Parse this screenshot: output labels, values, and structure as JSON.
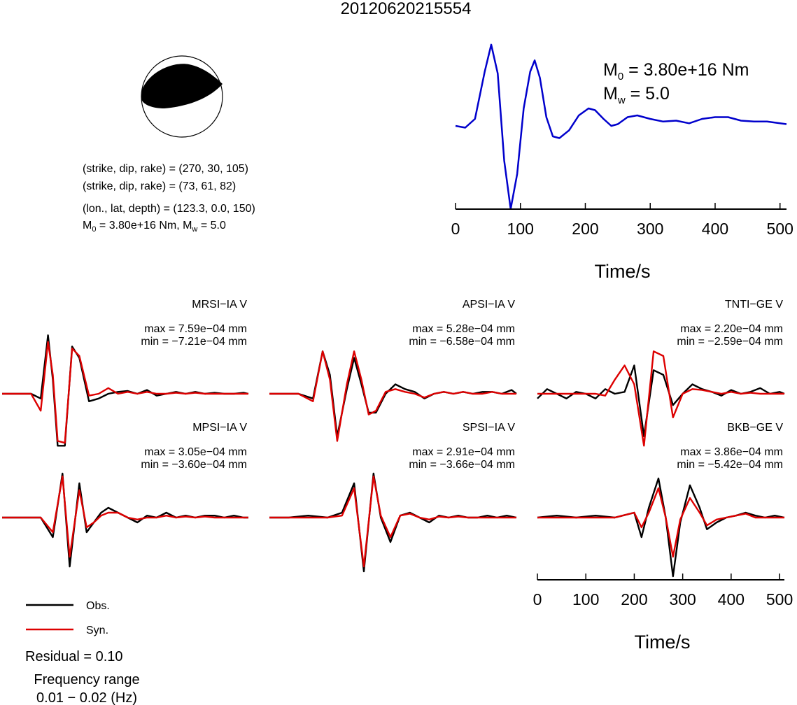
{
  "title": "20120620215554",
  "beachball": {
    "line1": "(strike, dip, rake) = (270, 30, 105)",
    "line2": "(strike, dip, rake) = (73, 61, 82)",
    "line3": "(lon., lat, depth) = (123.3, 0.0, 150)",
    "line4_a": "M",
    "line4_sub0": "0",
    "line4_b": " = 3.80e+16 Nm, M",
    "line4_subw": "w",
    "line4_c": " = 5.0"
  },
  "stf": {
    "m0_sym": "M",
    "m0_sub": "0",
    "m0_text": " = 3.80e+16 Nm",
    "mw_sym": "M",
    "mw_sub": "w",
    "mw_text": " = 5.0"
  },
  "legend": {
    "obs": "Obs.",
    "syn": "Syn."
  },
  "residual": "Residual = 0.10",
  "freq_line1": "Frequency range",
  "freq_line2": "0.01 − 0.02 (Hz)",
  "colors": {
    "obs": "#000000",
    "syn": "#dd0000",
    "stf": "#0000cc"
  },
  "chart_data": [
    {
      "type": "line",
      "xlabel": "Time/s",
      "xlim": [
        0,
        510
      ],
      "xticks": [
        "0",
        "100",
        "200",
        "300",
        "400",
        "500"
      ],
      "series": [
        {
          "x": [
            0,
            15,
            30,
            45,
            55,
            65,
            75,
            85,
            95,
            105,
            115,
            122,
            130,
            140,
            150,
            160,
            175,
            190,
            205,
            215,
            228,
            240,
            250,
            265,
            280,
            300,
            320,
            340,
            360,
            380,
            400,
            420,
            440,
            460,
            480,
            500,
            510
          ],
          "values": [
            0.0,
            -0.02,
            0.08,
            0.62,
            0.93,
            0.6,
            -0.4,
            -0.95,
            -0.55,
            0.2,
            0.62,
            0.75,
            0.55,
            0.1,
            -0.12,
            -0.14,
            -0.05,
            0.12,
            0.2,
            0.18,
            0.08,
            0.0,
            0.02,
            0.1,
            0.12,
            0.08,
            0.05,
            0.06,
            0.03,
            0.08,
            0.1,
            0.1,
            0.06,
            0.05,
            0.05,
            0.03,
            0.02
          ]
        }
      ]
    },
    {
      "type": "line",
      "title": "MRSI−IA V",
      "max": "max = 7.59e−04 mm",
      "min": "min = −7.21e−04 mm",
      "xlim": [
        0,
        510
      ],
      "series": [
        {
          "name": "Obs.",
          "x": [
            0,
            60,
            80,
            95,
            105,
            115,
            130,
            145,
            160,
            180,
            200,
            220,
            240,
            260,
            280,
            300,
            320,
            340,
            360,
            380,
            400,
            420,
            440,
            460,
            480,
            500,
            510
          ],
          "values": [
            0,
            0,
            -0.05,
            0.62,
            0.15,
            -0.55,
            -0.55,
            0.5,
            0.38,
            -0.08,
            -0.05,
            0.0,
            0.02,
            0.03,
            0.0,
            0.04,
            -0.02,
            0.0,
            0.02,
            0.0,
            0.02,
            0.0,
            0.01,
            0.0,
            0.0,
            0.01,
            0.0
          ]
        },
        {
          "name": "Syn.",
          "x": [
            0,
            60,
            80,
            95,
            105,
            115,
            130,
            145,
            160,
            180,
            200,
            220,
            240,
            260,
            280,
            300,
            320,
            340,
            360,
            380,
            400,
            420,
            440,
            460,
            480,
            500,
            510
          ],
          "values": [
            0,
            0,
            -0.18,
            0.55,
            0.2,
            -0.5,
            -0.52,
            0.48,
            0.4,
            -0.02,
            0.0,
            0.06,
            0.0,
            0.02,
            0.0,
            0.02,
            0.0,
            0.0,
            0.01,
            0.0,
            0.01,
            0.0,
            0.0,
            0.0,
            0.0,
            0.0,
            0.0
          ]
        }
      ]
    },
    {
      "type": "line",
      "title": "APSI−IA V",
      "max": "max = 5.28e−04 mm",
      "min": "min = −6.58e−04 mm",
      "xlim": [
        0,
        510
      ],
      "series": [
        {
          "name": "Obs.",
          "x": [
            0,
            60,
            90,
            110,
            125,
            140,
            160,
            175,
            190,
            205,
            220,
            240,
            260,
            280,
            300,
            320,
            340,
            360,
            380,
            400,
            420,
            440,
            460,
            480,
            500,
            510
          ],
          "values": [
            0,
            0,
            -0.05,
            0.45,
            0.2,
            -0.45,
            0.05,
            0.38,
            0.1,
            -0.2,
            -0.2,
            0.0,
            0.1,
            0.05,
            0.02,
            -0.05,
            0.0,
            0.02,
            0.0,
            0.02,
            0.0,
            0.02,
            0.02,
            0.0,
            0.04,
            0.0
          ]
        },
        {
          "name": "Syn.",
          "x": [
            0,
            60,
            90,
            110,
            125,
            140,
            160,
            175,
            190,
            205,
            220,
            240,
            260,
            280,
            300,
            320,
            340,
            360,
            380,
            400,
            420,
            440,
            460,
            480,
            500,
            510
          ],
          "values": [
            0,
            0,
            -0.08,
            0.45,
            0.15,
            -0.5,
            0.1,
            0.45,
            0.15,
            -0.22,
            -0.18,
            0.02,
            0.05,
            0.02,
            0.0,
            -0.04,
            0.0,
            0.02,
            0.0,
            0.02,
            0.0,
            0.0,
            0.02,
            0.0,
            0.0,
            0.0
          ]
        }
      ]
    },
    {
      "type": "line",
      "title": "TNTI−GE V",
      "max": "max = 2.20e−04 mm",
      "min": "min = −2.59e−04 mm",
      "xlim": [
        0,
        510
      ],
      "series": [
        {
          "name": "Obs.",
          "x": [
            0,
            20,
            40,
            60,
            80,
            100,
            120,
            140,
            160,
            180,
            200,
            220,
            240,
            260,
            280,
            300,
            320,
            340,
            360,
            380,
            400,
            420,
            440,
            460,
            480,
            500,
            510
          ],
          "values": [
            -0.05,
            0.05,
            0.0,
            -0.05,
            0.02,
            0.0,
            -0.05,
            0.05,
            0.0,
            0.02,
            0.3,
            -0.45,
            0.25,
            0.2,
            -0.12,
            0.0,
            0.1,
            0.05,
            0.02,
            -0.02,
            0.04,
            0.0,
            0.02,
            0.06,
            0.0,
            0.02,
            0.0
          ]
        },
        {
          "name": "Syn.",
          "x": [
            0,
            20,
            40,
            60,
            80,
            100,
            120,
            140,
            160,
            180,
            200,
            220,
            240,
            260,
            280,
            300,
            320,
            340,
            360,
            380,
            400,
            420,
            440,
            460,
            480,
            500,
            510
          ],
          "values": [
            0,
            0,
            0,
            0,
            0,
            0,
            0,
            -0.02,
            0.15,
            0.3,
            0.1,
            -0.55,
            0.45,
            0.4,
            -0.25,
            0.0,
            0.05,
            0.04,
            0.02,
            0.0,
            0.02,
            0.0,
            0.01,
            0.0,
            0.0,
            0.0,
            0.0
          ]
        }
      ]
    },
    {
      "type": "line",
      "title": "MPSI−IA V",
      "max": "max = 3.05e−04 mm",
      "min": "min = −3.60e−04 mm",
      "xlim": [
        0,
        510
      ],
      "series": [
        {
          "name": "Obs.",
          "x": [
            0,
            40,
            80,
            105,
            125,
            140,
            160,
            175,
            190,
            205,
            220,
            240,
            260,
            280,
            300,
            320,
            340,
            360,
            380,
            400,
            420,
            440,
            460,
            480,
            500,
            510
          ],
          "values": [
            0,
            0,
            0.0,
            -0.2,
            0.45,
            -0.5,
            0.35,
            -0.15,
            -0.05,
            0.05,
            0.1,
            0.05,
            0.0,
            -0.05,
            0.02,
            0.0,
            0.05,
            0.0,
            0.02,
            0.0,
            0.02,
            0.02,
            0.0,
            0.02,
            0.0,
            0.0
          ]
        },
        {
          "name": "Syn.",
          "x": [
            0,
            40,
            80,
            105,
            125,
            140,
            160,
            175,
            190,
            205,
            220,
            240,
            260,
            280,
            300,
            320,
            340,
            360,
            380,
            400,
            420,
            440,
            460,
            480,
            500,
            510
          ],
          "values": [
            0,
            0,
            0.0,
            -0.15,
            0.42,
            -0.4,
            0.28,
            -0.1,
            -0.05,
            0.02,
            0.05,
            0.05,
            0.0,
            -0.02,
            0.0,
            0.0,
            0.02,
            0.0,
            0.01,
            0.0,
            0.01,
            0.0,
            0.0,
            0.0,
            0.0,
            0.0
          ]
        }
      ]
    },
    {
      "type": "line",
      "title": "SPSI−IA V",
      "max": "max = 2.91e−04 mm",
      "min": "min = −3.66e−04 mm",
      "xlim": [
        0,
        510
      ],
      "series": [
        {
          "name": "Obs.",
          "x": [
            0,
            40,
            80,
            120,
            150,
            175,
            195,
            215,
            230,
            250,
            270,
            290,
            310,
            330,
            350,
            370,
            390,
            410,
            430,
            450,
            470,
            490,
            510
          ],
          "values": [
            0,
            0,
            0.02,
            0.0,
            0.05,
            0.35,
            -0.55,
            0.45,
            0.0,
            -0.25,
            0.02,
            0.05,
            0.0,
            -0.05,
            0.02,
            0.0,
            0.02,
            0.0,
            0.0,
            0.02,
            0.0,
            0.02,
            0.0
          ]
        },
        {
          "name": "Syn.",
          "x": [
            0,
            40,
            80,
            120,
            150,
            175,
            195,
            215,
            230,
            250,
            270,
            290,
            310,
            330,
            350,
            370,
            390,
            410,
            430,
            450,
            470,
            490,
            510
          ],
          "values": [
            0,
            0,
            0.0,
            0.0,
            0.02,
            0.3,
            -0.5,
            0.42,
            0.02,
            -0.2,
            0.02,
            0.04,
            0.0,
            -0.02,
            0.01,
            0.0,
            0.01,
            0.0,
            0.0,
            0.0,
            0.0,
            0.0,
            0.0
          ]
        }
      ]
    },
    {
      "type": "line",
      "title": "BKB−GE V",
      "max": "max = 3.86e−04 mm",
      "min": "min = −5.42e−04 mm",
      "xlabel": "Time/s",
      "xlim": [
        0,
        510
      ],
      "xticks": [
        "0",
        "100",
        "200",
        "300",
        "400",
        "500"
      ],
      "series": [
        {
          "name": "Obs.",
          "x": [
            0,
            40,
            80,
            120,
            160,
            200,
            215,
            230,
            250,
            265,
            280,
            295,
            315,
            335,
            350,
            370,
            390,
            410,
            430,
            450,
            470,
            490,
            510
          ],
          "values": [
            0,
            0.02,
            0.0,
            0.02,
            0.0,
            0.05,
            -0.2,
            0.1,
            0.4,
            0.0,
            -0.6,
            -0.05,
            0.33,
            0.1,
            -0.12,
            -0.05,
            0.0,
            0.02,
            0.05,
            0.02,
            0.0,
            0.02,
            0.0
          ]
        },
        {
          "name": "Syn.",
          "x": [
            0,
            40,
            80,
            120,
            160,
            200,
            215,
            230,
            250,
            265,
            280,
            295,
            315,
            335,
            350,
            370,
            390,
            410,
            430,
            450,
            470,
            490,
            510
          ],
          "values": [
            0,
            0,
            0.0,
            0.0,
            0.0,
            0.05,
            -0.1,
            0.05,
            0.3,
            0.0,
            -0.4,
            -0.02,
            0.2,
            0.05,
            -0.08,
            -0.02,
            0.0,
            0.02,
            0.04,
            0.0,
            0.0,
            0.0,
            0.0
          ]
        }
      ]
    }
  ]
}
